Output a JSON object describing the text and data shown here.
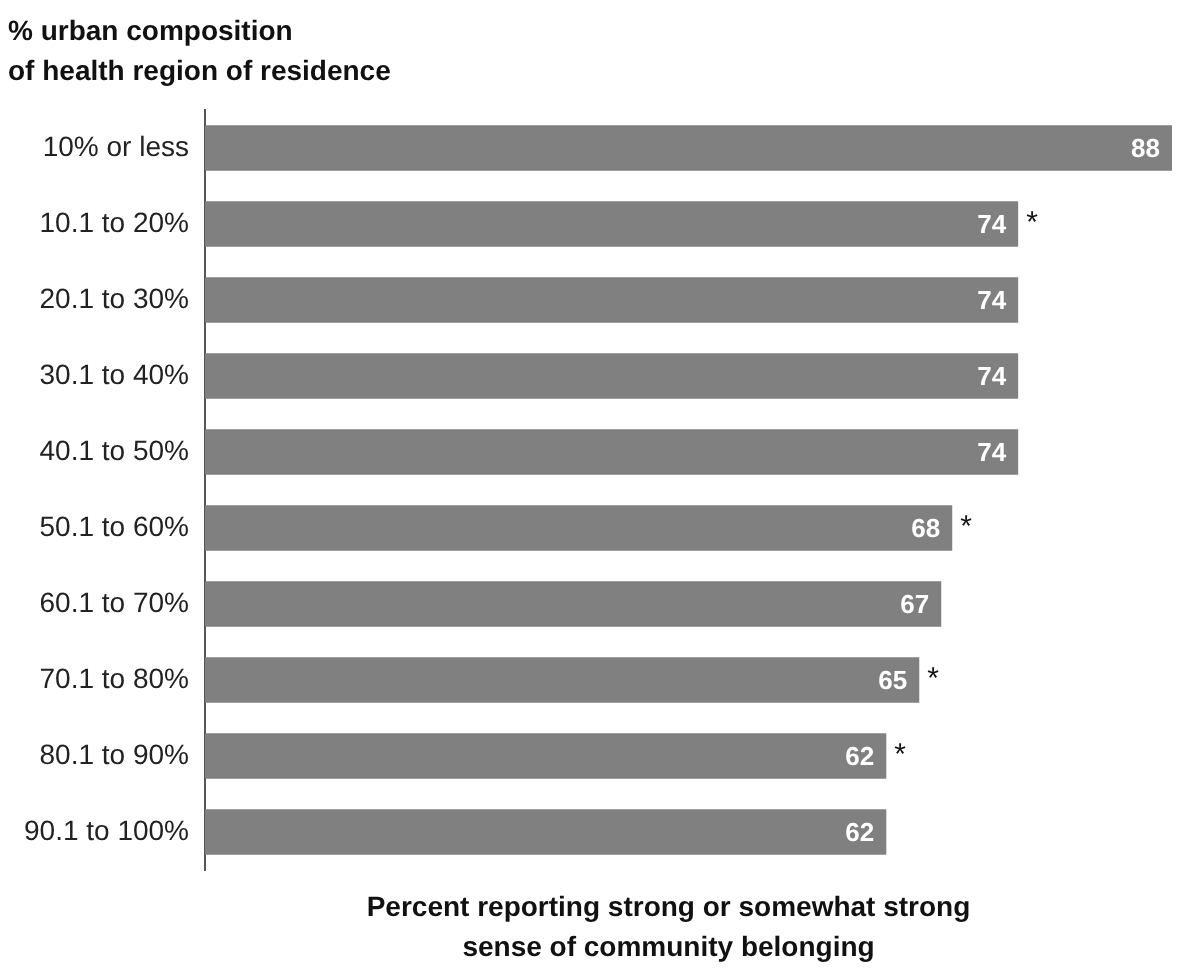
{
  "chart_data": {
    "type": "bar",
    "orientation": "horizontal",
    "ylabel": "% urban composition\nof health region of residence",
    "xlabel": "Percent reporting strong or somewhat strong\nsense of community belonging",
    "categories": [
      "10% or less",
      "10.1 to 20%",
      "20.1 to 30%",
      "30.1 to 40%",
      "40.1 to 50%",
      "50.1 to 60%",
      "60.1 to 70%",
      "70.1 to 80%",
      "80.1 to 90%",
      "90.1 to 100%"
    ],
    "values": [
      88,
      74,
      74,
      74,
      74,
      68,
      67,
      65,
      62,
      62
    ],
    "color": "#808080",
    "data_labels": true,
    "grid": false,
    "legend": false,
    "annotations": [
      {
        "text": "*",
        "x": 74,
        "y": "10.1 to 20%"
      },
      {
        "text": "*",
        "x": 68,
        "y": "50.1 to 60%"
      },
      {
        "text": "*",
        "x": 65,
        "y": "70.1 to 80%"
      },
      {
        "text": "*",
        "x": 62,
        "y": "80.1 to 90%"
      }
    ]
  }
}
